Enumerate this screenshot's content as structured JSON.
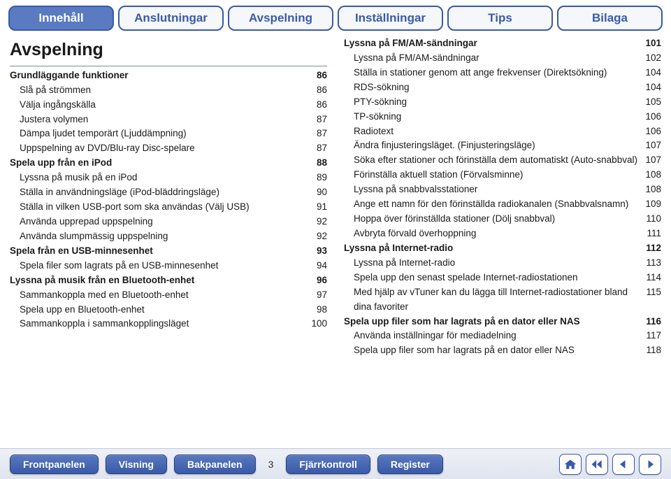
{
  "colors": {
    "primary": "#3a5aa8",
    "primary_light": "#5a7ac2",
    "border": "#7d8aa3",
    "text": "#1a1a1a"
  },
  "top_tabs": [
    {
      "label": "Innehåll",
      "active": true
    },
    {
      "label": "Anslutningar",
      "active": false
    },
    {
      "label": "Avspelning",
      "active": false
    },
    {
      "label": "Inställningar",
      "active": false
    },
    {
      "label": "Tips",
      "active": false
    },
    {
      "label": "Bilaga",
      "active": false
    }
  ],
  "section_title": "Avspelning",
  "page_number": "3",
  "left_toc": [
    {
      "label": "Grundläggande funktioner",
      "page": "86",
      "bold": true,
      "indent": false
    },
    {
      "label": "Slå på strömmen",
      "page": "86",
      "bold": false,
      "indent": true
    },
    {
      "label": "Välja ingångskälla",
      "page": "86",
      "bold": false,
      "indent": true
    },
    {
      "label": "Justera volymen",
      "page": "87",
      "bold": false,
      "indent": true
    },
    {
      "label": "Dämpa ljudet temporärt (Ljuddämpning)",
      "page": "87",
      "bold": false,
      "indent": true
    },
    {
      "label": "Uppspelning av DVD/Blu-ray Disc-spelare",
      "page": "87",
      "bold": false,
      "indent": true
    },
    {
      "label": "Spela upp från en iPod",
      "page": "88",
      "bold": true,
      "indent": false
    },
    {
      "label": "Lyssna på musik på en iPod",
      "page": "89",
      "bold": false,
      "indent": true
    },
    {
      "label": "Ställa in användningsläge (iPod-bläddringsläge)",
      "page": "90",
      "bold": false,
      "indent": true
    },
    {
      "label": "Ställa in vilken USB-port som ska användas (Välj USB)",
      "page": "91",
      "bold": false,
      "indent": true
    },
    {
      "label": "Använda upprepad uppspelning",
      "page": "92",
      "bold": false,
      "indent": true
    },
    {
      "label": "Använda slumpmässig uppspelning",
      "page": "92",
      "bold": false,
      "indent": true
    },
    {
      "label": "Spela från en USB-minnesenhet",
      "page": "93",
      "bold": true,
      "indent": false
    },
    {
      "label": "Spela filer som lagrats på en USB-minnesenhet",
      "page": "94",
      "bold": false,
      "indent": true
    },
    {
      "label": "Lyssna på musik från en Bluetooth-enhet",
      "page": "96",
      "bold": true,
      "indent": false
    },
    {
      "label": "Sammankoppla med en Bluetooth-enhet",
      "page": "97",
      "bold": false,
      "indent": true
    },
    {
      "label": "Spela upp en Bluetooth-enhet",
      "page": "98",
      "bold": false,
      "indent": true
    },
    {
      "label": "Sammankoppla i sammankopplingsläget",
      "page": "100",
      "bold": false,
      "indent": true
    }
  ],
  "right_toc": [
    {
      "label": "Lyssna på FM/AM-sändningar",
      "page": "101",
      "bold": true,
      "indent": false
    },
    {
      "label": "Lyssna på FM/AM-sändningar",
      "page": "102",
      "bold": false,
      "indent": true
    },
    {
      "label": "Ställa in stationer genom att ange frekvenser (Direktsökning)",
      "page": "104",
      "bold": false,
      "indent": true
    },
    {
      "label": "RDS-sökning",
      "page": "104",
      "bold": false,
      "indent": true
    },
    {
      "label": "PTY-sökning",
      "page": "105",
      "bold": false,
      "indent": true
    },
    {
      "label": "TP-sökning",
      "page": "106",
      "bold": false,
      "indent": true
    },
    {
      "label": "Radiotext",
      "page": "106",
      "bold": false,
      "indent": true
    },
    {
      "label": "Ändra finjusteringsläget. (Finjusteringsläge)",
      "page": "107",
      "bold": false,
      "indent": true
    },
    {
      "label": "Söka efter stationer och förinställa dem automatiskt (Auto-snabbval)",
      "page": "107",
      "bold": false,
      "indent": true
    },
    {
      "label": "Förinställa aktuell station (Förvalsminne)",
      "page": "108",
      "bold": false,
      "indent": true
    },
    {
      "label": "Lyssna på snabbvalsstationer",
      "page": "108",
      "bold": false,
      "indent": true
    },
    {
      "label": "Ange ett namn för den förinställda radiokanalen (Snabbvalsnamn)",
      "page": "109",
      "bold": false,
      "indent": true
    },
    {
      "label": "Hoppa över förinställda stationer (Dölj snabbval)",
      "page": "110",
      "bold": false,
      "indent": true
    },
    {
      "label": "Avbryta förvald överhoppning",
      "page": "111",
      "bold": false,
      "indent": true
    },
    {
      "label": "Lyssna på Internet-radio",
      "page": "112",
      "bold": true,
      "indent": false
    },
    {
      "label": "Lyssna på Internet-radio",
      "page": "113",
      "bold": false,
      "indent": true
    },
    {
      "label": "Spela upp den senast spelade Internet-radiostationen",
      "page": "114",
      "bold": false,
      "indent": true
    },
    {
      "label": "Med hjälp av vTuner kan du lägga till Internet-radiostationer bland dina favoriter",
      "page": "115",
      "bold": false,
      "indent": true
    },
    {
      "label": "Spela upp filer som har lagrats på en dator eller NAS",
      "page": "116",
      "bold": true,
      "indent": false
    },
    {
      "label": "Använda inställningar för mediadelning",
      "page": "117",
      "bold": false,
      "indent": true
    },
    {
      "label": "Spela upp filer som har lagrats på en dator eller NAS",
      "page": "118",
      "bold": false,
      "indent": true
    }
  ],
  "bottom_buttons": [
    {
      "label": "Frontpanelen"
    },
    {
      "label": "Visning"
    },
    {
      "label": "Bakpanelen"
    },
    {
      "label": "Fjärrkontroll"
    },
    {
      "label": "Register"
    }
  ]
}
